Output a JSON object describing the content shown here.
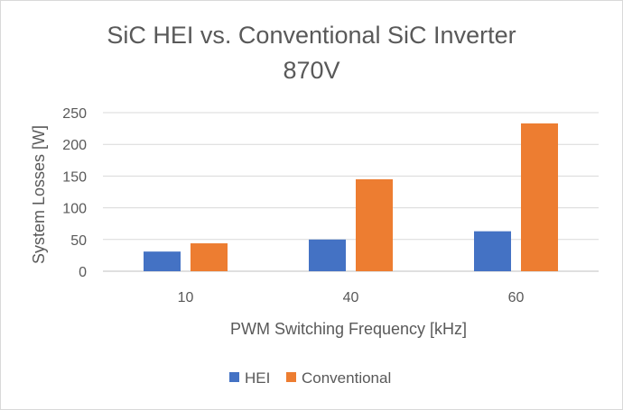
{
  "chart_data": {
    "type": "bar",
    "title": "SiC HEI vs. Conventional SiC Inverter",
    "subtitle": "870V",
    "xlabel": "PWM Switching Frequency [kHz]",
    "ylabel": "System Losses [W]",
    "categories": [
      "10",
      "40",
      "60"
    ],
    "series": [
      {
        "name": "HEI",
        "color": "#4472c4",
        "values": [
          31,
          50,
          63
        ]
      },
      {
        "name": "Conventional",
        "color": "#ed7d31",
        "values": [
          44,
          145,
          233
        ]
      }
    ],
    "ylim": [
      0,
      250
    ],
    "yticks": [
      "0",
      "50",
      "100",
      "150",
      "200",
      "250"
    ],
    "grid": true,
    "legend_position": "bottom"
  }
}
